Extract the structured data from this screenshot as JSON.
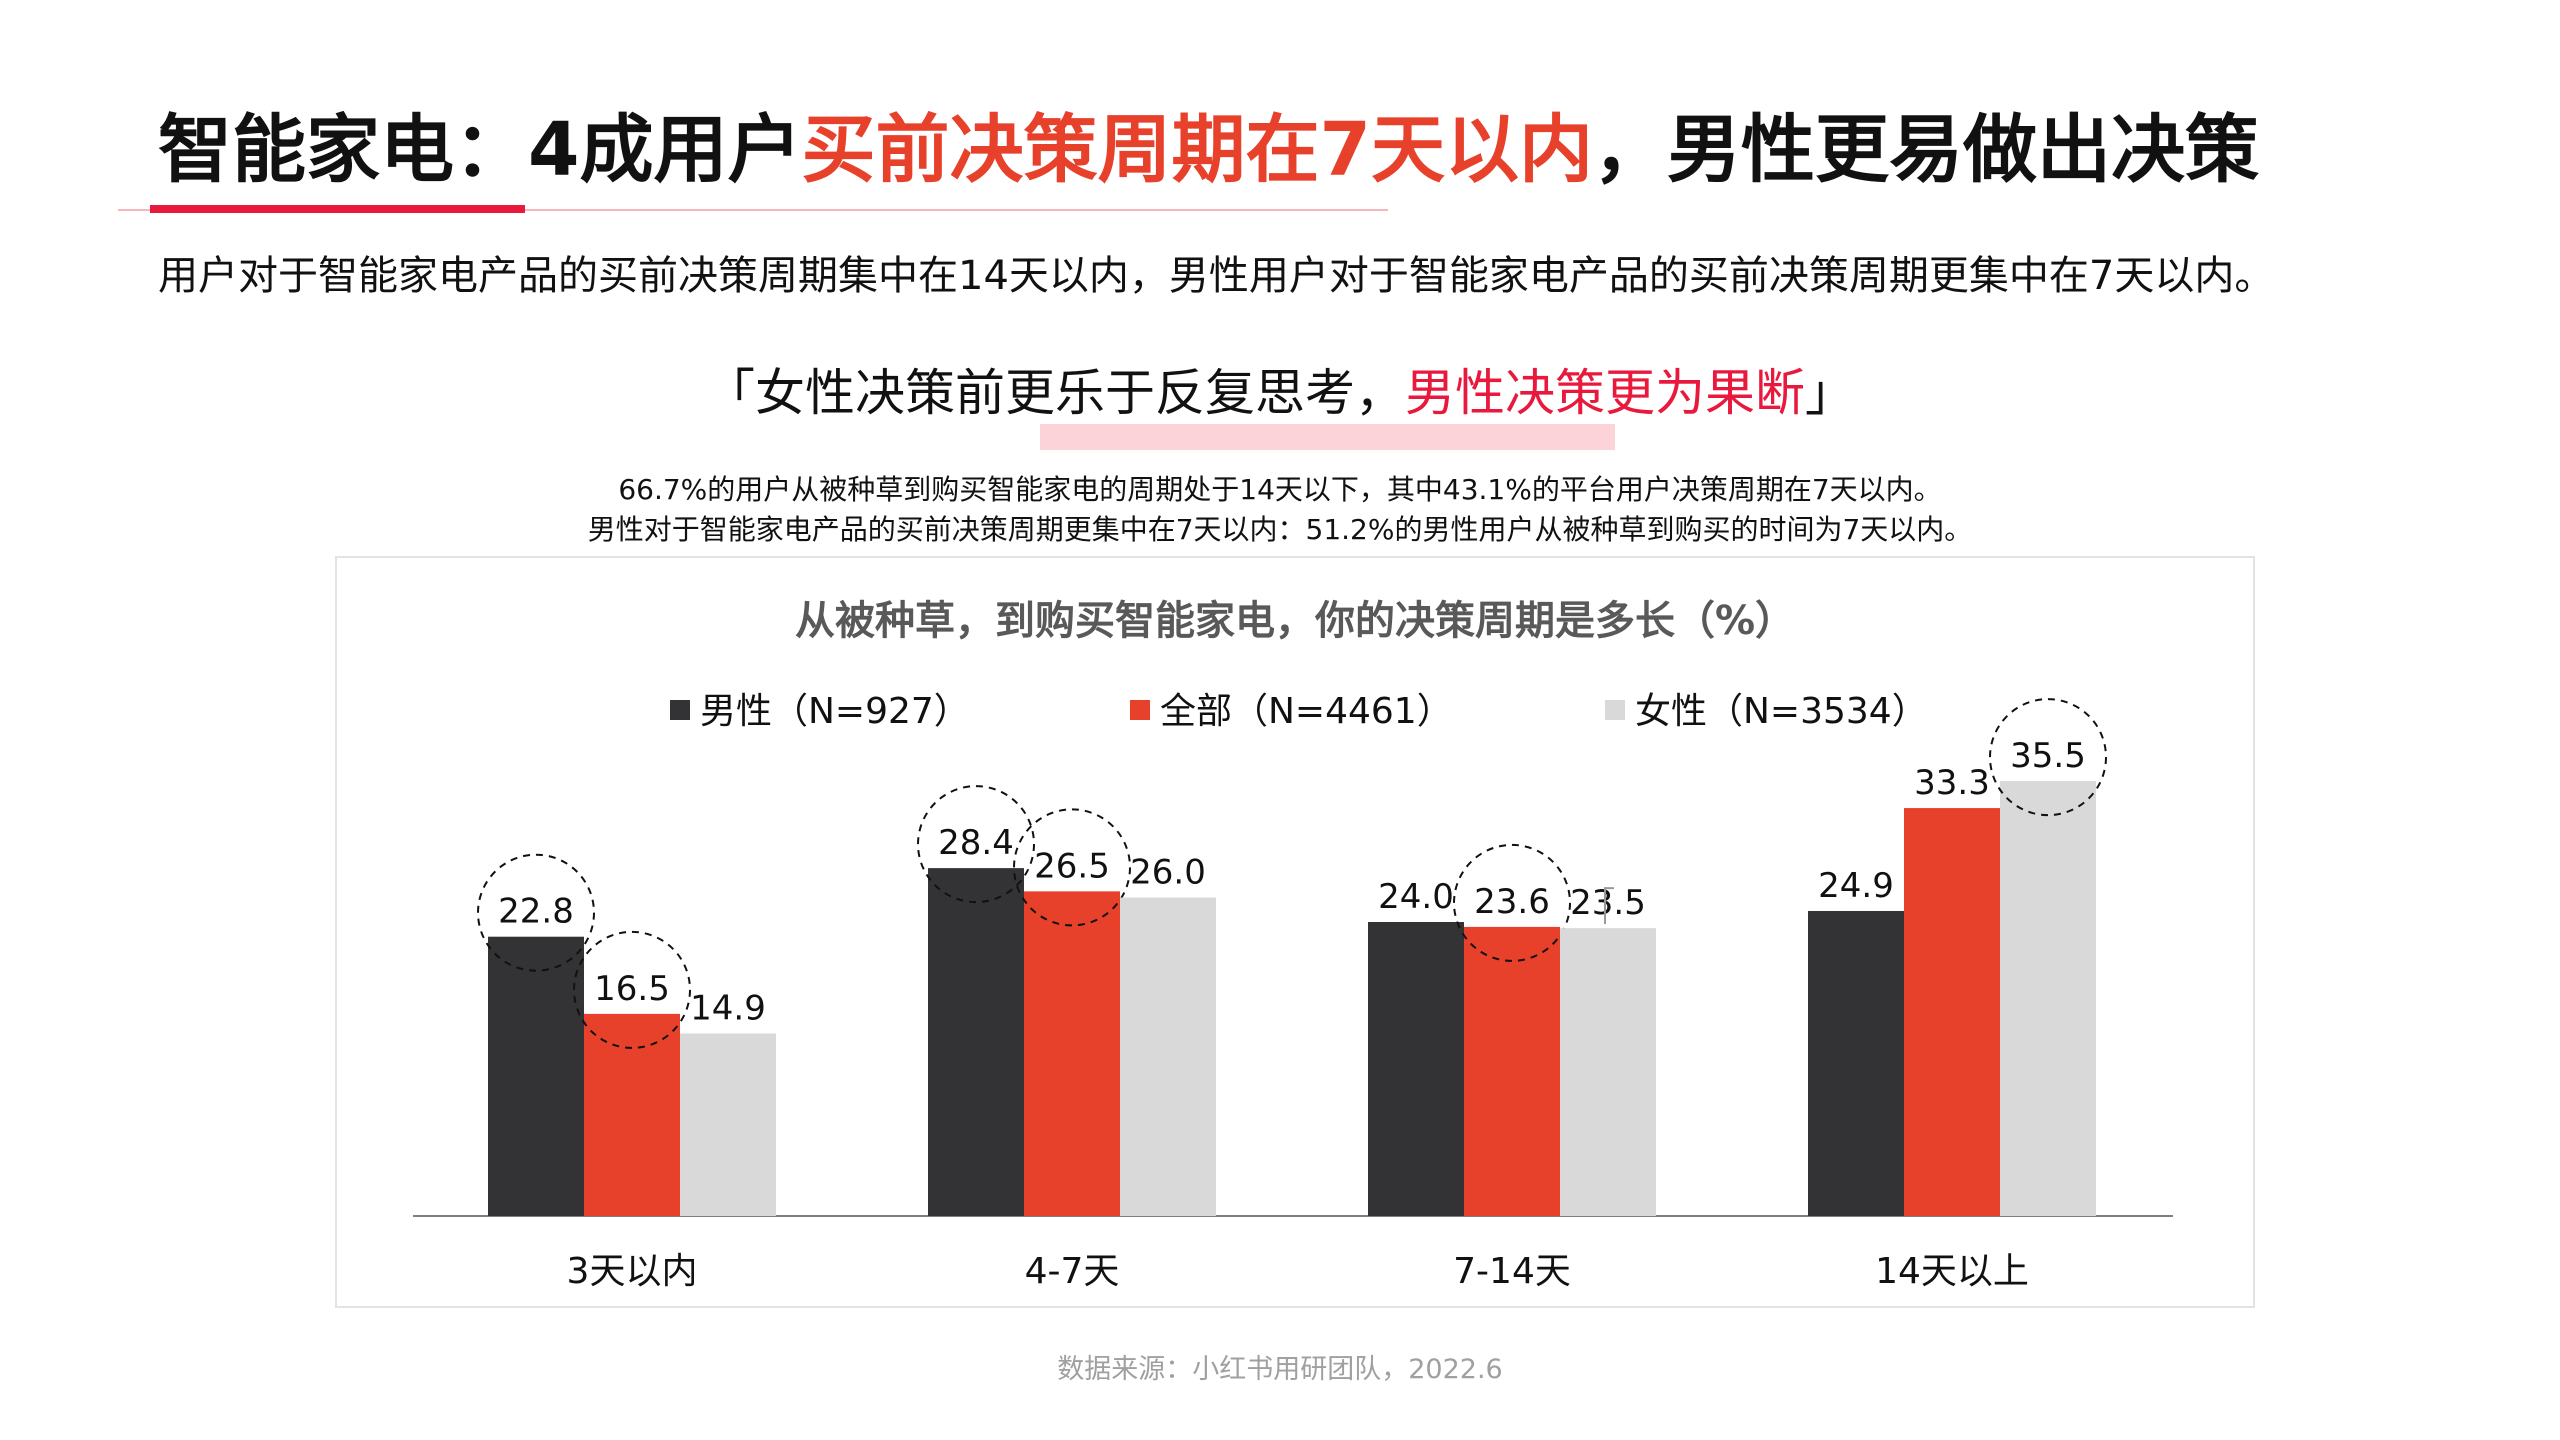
{
  "title": {
    "prefix": "智能家电：4成用户",
    "highlight": "买前决策周期在7天以内",
    "suffix": "，男性更易做出决策"
  },
  "subtitle": "用户对于智能家电产品的买前决策周期集中在14天以内，男性用户对于智能家电产品的买前决策周期更集中在7天以内。",
  "quote": {
    "open": "「",
    "part1": "女性决策前更乐于反复思考，",
    "part2": "男性决策更为果断",
    "close": "」"
  },
  "notes": [
    "66.7%的用户从被种草到购买智能家电的周期处于14天以下，其中43.1%的平台用户决策周期在7天以内。",
    "男性对于智能家电产品的买前决策周期更集中在7天以内：51.2%的男性用户从被种草到购买的时间为7天以内。"
  ],
  "source": "数据来源：小红书用研团队，2022.6",
  "colors": {
    "male": "#333335",
    "all": "#e8412b",
    "female": "#d9d9d9",
    "accent": "#e8193c"
  },
  "chart_data": {
    "type": "bar",
    "title": "从被种草，到购买智能家电，你的决策周期是多长（%）",
    "categories": [
      "3天以内",
      "4-7天",
      "7-14天",
      "14天以上"
    ],
    "series": [
      {
        "name": "男性（N=927）",
        "values": [
          22.8,
          28.4,
          24.0,
          24.9
        ]
      },
      {
        "name": "全部（N=4461）",
        "values": [
          16.5,
          26.5,
          23.6,
          33.3
        ]
      },
      {
        "name": "女性（N=3534）",
        "values": [
          14.9,
          26.0,
          23.5,
          35.5
        ]
      }
    ],
    "data_labels": [
      [
        "22.8",
        "28.4",
        "24.0",
        "24.9"
      ],
      [
        "16.5",
        "26.5",
        "23.6",
        "33.3"
      ],
      [
        "14.9",
        "26.0",
        "23.5",
        "35.5"
      ]
    ],
    "ylim": [
      0,
      40
    ],
    "grid": false,
    "legend": "top",
    "highlighted": [
      {
        "series": 0,
        "category": 0
      },
      {
        "series": 1,
        "category": 0
      },
      {
        "series": 0,
        "category": 1
      },
      {
        "series": 1,
        "category": 1
      },
      {
        "series": 1,
        "category": 2
      },
      {
        "series": 2,
        "category": 3
      }
    ]
  }
}
